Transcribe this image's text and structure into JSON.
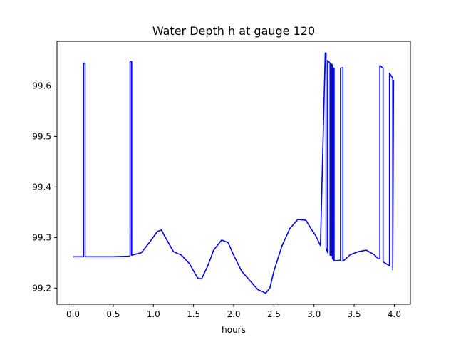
{
  "chart_data": {
    "type": "line",
    "title": "Water Depth h at gauge 120",
    "xlabel": "hours",
    "ylabel": "",
    "xlim": [
      -0.2,
      4.2
    ],
    "ylim": [
      99.168,
      99.688
    ],
    "xticks": [
      0.0,
      0.5,
      1.0,
      1.5,
      2.0,
      2.5,
      3.0,
      3.5,
      4.0
    ],
    "xtick_labels": [
      "0.0",
      "0.5",
      "1.0",
      "1.5",
      "2.0",
      "2.5",
      "3.0",
      "3.5",
      "4.0"
    ],
    "yticks": [
      99.2,
      99.3,
      99.4,
      99.5,
      99.6
    ],
    "ytick_labels": [
      "99.2",
      "99.3",
      "99.4",
      "99.5",
      "99.6"
    ],
    "grid": false,
    "series": [
      {
        "color": "#0000ff",
        "x": [
          0.0,
          0.13,
          0.13,
          0.15,
          0.15,
          0.5,
          0.7,
          0.71,
          0.71,
          0.73,
          0.73,
          0.85,
          0.95,
          1.05,
          1.1,
          1.15,
          1.25,
          1.35,
          1.45,
          1.55,
          1.6,
          1.68,
          1.75,
          1.85,
          1.93,
          2.0,
          2.1,
          2.2,
          2.3,
          2.4,
          2.45,
          2.5,
          2.6,
          2.7,
          2.8,
          2.9,
          2.96,
          3.02,
          3.08,
          3.14,
          3.15,
          3.15,
          3.17,
          3.17,
          3.2,
          3.2,
          3.22,
          3.22,
          3.23,
          3.23,
          3.24,
          3.24,
          3.25,
          3.25,
          3.27,
          3.33,
          3.33,
          3.36,
          3.36,
          3.45,
          3.55,
          3.65,
          3.75,
          3.8,
          3.82,
          3.82,
          3.86,
          3.86,
          3.92,
          3.94,
          3.94,
          3.98,
          3.98,
          3.99
        ],
        "y": [
          99.262,
          99.262,
          99.645,
          99.645,
          99.262,
          99.262,
          99.263,
          99.264,
          99.648,
          99.648,
          99.265,
          99.27,
          99.29,
          99.312,
          99.315,
          99.3,
          99.272,
          99.265,
          99.248,
          99.22,
          99.218,
          99.245,
          99.275,
          99.295,
          99.29,
          99.265,
          99.233,
          99.215,
          99.197,
          99.19,
          99.2,
          99.233,
          99.283,
          99.318,
          99.336,
          99.334,
          99.318,
          99.304,
          99.284,
          99.665,
          99.665,
          99.28,
          99.27,
          99.65,
          99.645,
          99.265,
          99.265,
          99.643,
          99.64,
          99.258,
          99.256,
          99.635,
          99.635,
          99.254,
          99.254,
          99.255,
          99.635,
          99.636,
          99.253,
          99.266,
          99.272,
          99.275,
          99.266,
          99.258,
          99.258,
          99.64,
          99.635,
          99.252,
          99.246,
          99.244,
          99.625,
          99.615,
          99.236,
          99.612
        ]
      }
    ]
  }
}
